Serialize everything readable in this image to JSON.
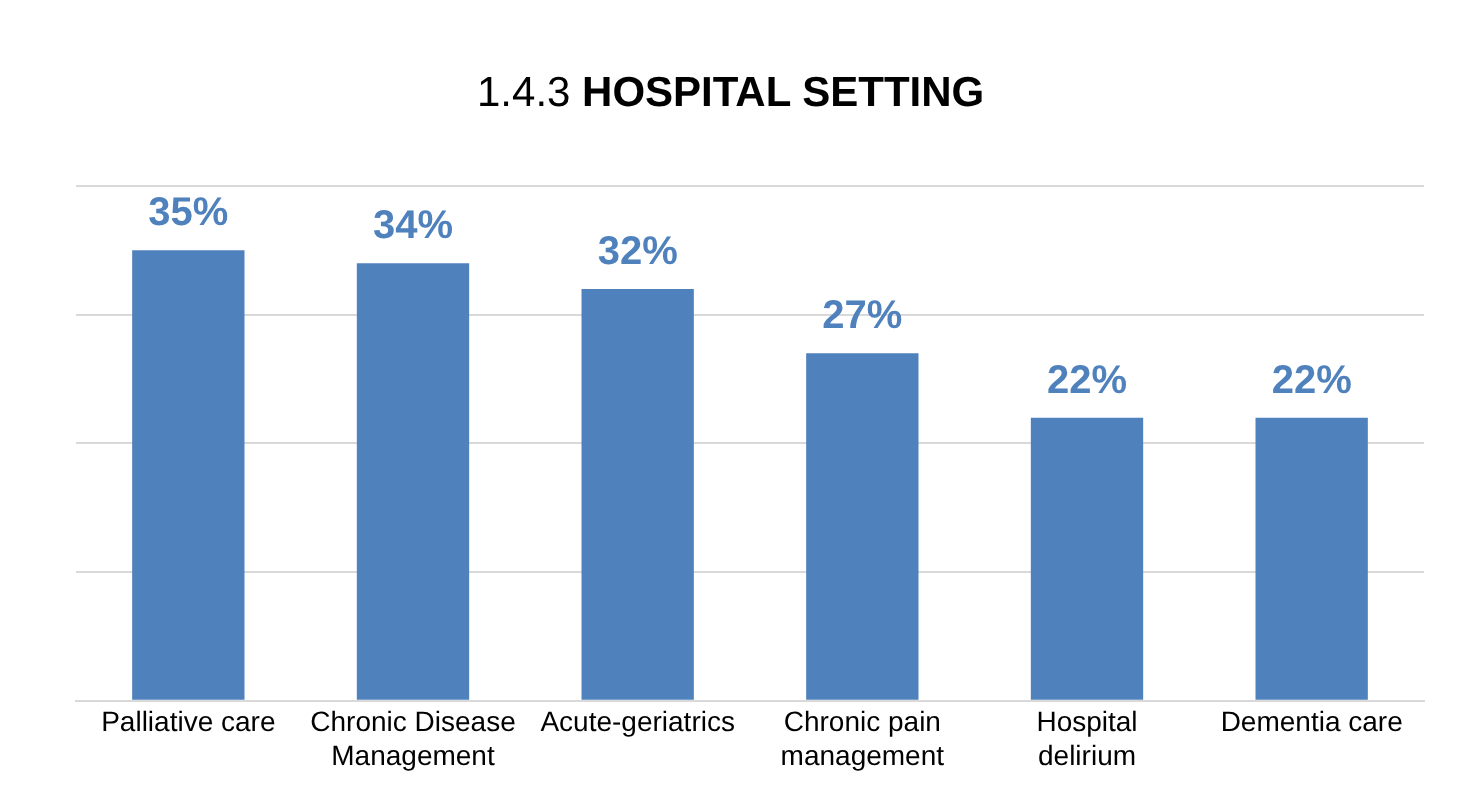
{
  "chart_data": {
    "type": "bar",
    "title": "1.4.3 HOSPITAL SETTING",
    "categories": [
      "Palliative care",
      "Chronic Disease Management",
      "Acute-geriatrics",
      "Chronic pain management",
      "Hospital delirium",
      "Dementia care"
    ],
    "values": [
      35,
      34,
      32,
      27,
      22,
      22
    ],
    "value_labels": [
      "35%",
      "34%",
      "32%",
      "27%",
      "22%",
      "22%"
    ],
    "color": "#4f81bd",
    "ylim": [
      0,
      40
    ],
    "yticks": [
      {
        "value": 0,
        "label": null
      },
      {
        "value": 10,
        "label": null
      },
      {
        "value": 20,
        "label": null
      },
      {
        "value": 30,
        "label": null
      },
      {
        "value": 40,
        "label": null
      }
    ],
    "grid": "y",
    "tick_labels": "x",
    "legend": false
  }
}
